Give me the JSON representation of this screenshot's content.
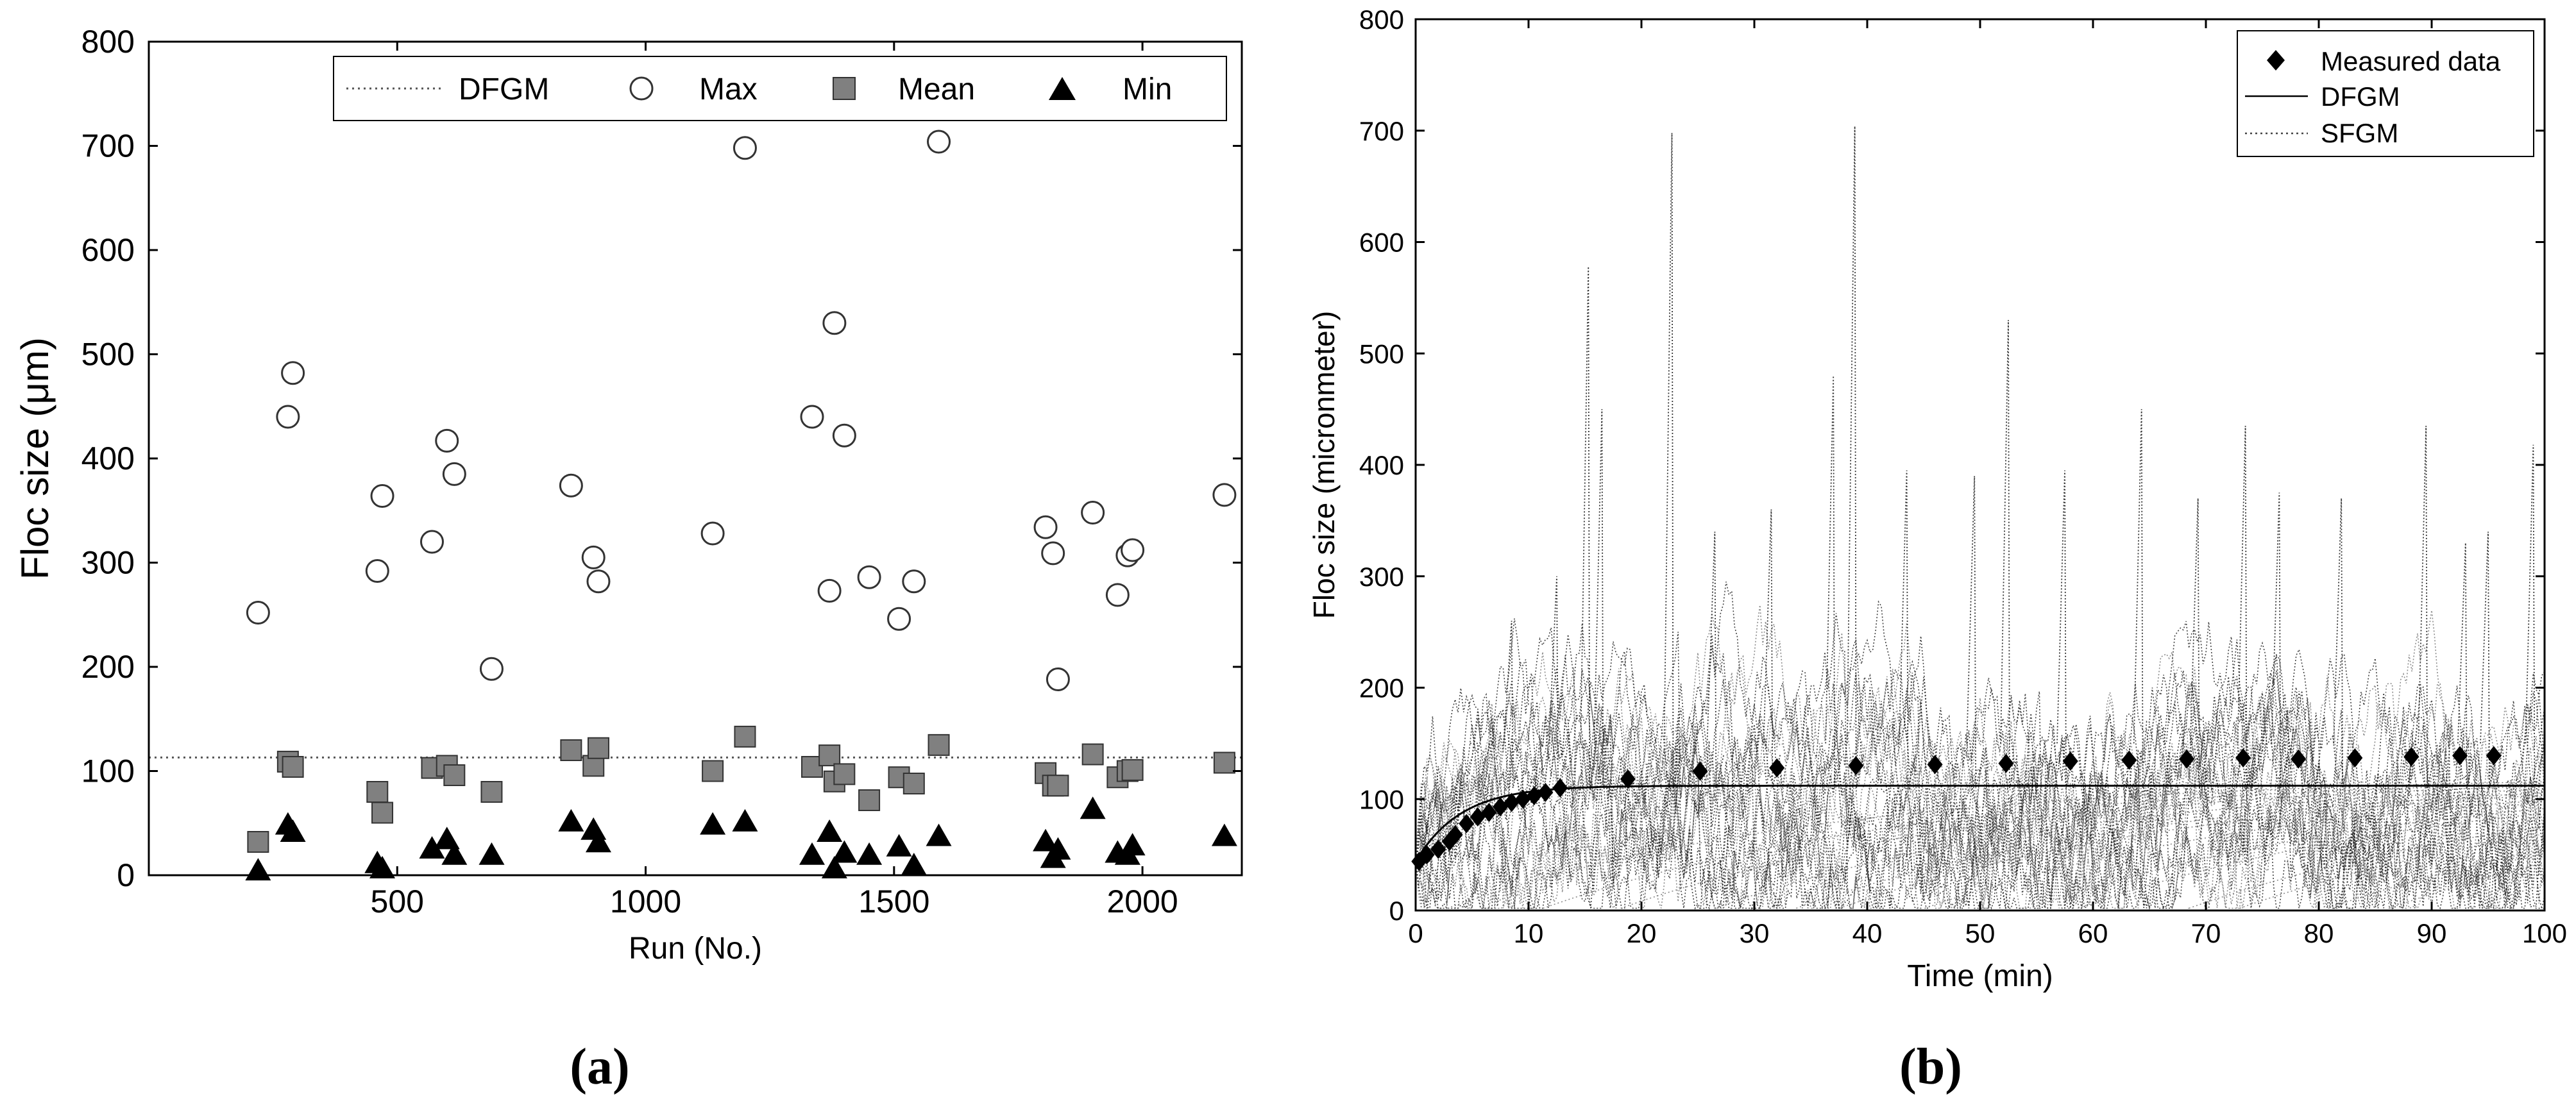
{
  "chart_data": [
    {
      "type": "scatter",
      "panel_label": "(a)",
      "panel_letter": "a",
      "title": "",
      "xlabel": "Run (No.)",
      "ylabel": "Floc size (μm)",
      "xlim": [
        0,
        2200
      ],
      "ylim": [
        0,
        800
      ],
      "xticks": [
        500,
        1000,
        1500,
        2000
      ],
      "xtick_labels": [
        "500",
        "1000",
        "1500",
        "2000"
      ],
      "yticks": [
        0,
        100,
        200,
        300,
        400,
        500,
        600,
        700,
        800
      ],
      "ytick_labels": [
        "0",
        "100",
        "200",
        "300",
        "400",
        "500",
        "600",
        "700",
        "800"
      ],
      "legend_position": "top-right",
      "legend": [
        "DFGM",
        "Max",
        "Mean",
        "Min"
      ],
      "dfgm_value": 113,
      "series": [
        {
          "name": "Max",
          "marker": "open-circle",
          "x": [
            220,
            280,
            290,
            460,
            470,
            570,
            600,
            615,
            690,
            850,
            895,
            905,
            1135,
            1200,
            1335,
            1370,
            1380,
            1400,
            1450,
            1510,
            1540,
            1590,
            1805,
            1820,
            1830,
            1900,
            1950,
            1970,
            1980,
            2165
          ],
          "y": [
            252,
            440,
            482,
            292,
            364,
            320,
            417,
            385,
            198,
            374,
            305,
            282,
            328,
            698,
            440,
            273,
            530,
            422,
            286,
            246,
            282,
            704,
            334,
            309,
            188,
            348,
            269,
            307,
            312,
            365
          ]
        },
        {
          "name": "Mean",
          "marker": "filled-square",
          "x": [
            220,
            280,
            290,
            460,
            470,
            570,
            600,
            615,
            690,
            850,
            895,
            905,
            1135,
            1200,
            1335,
            1370,
            1380,
            1400,
            1450,
            1510,
            1540,
            1590,
            1805,
            1820,
            1830,
            1900,
            1950,
            1970,
            1980,
            2165
          ],
          "y": [
            32,
            109,
            104,
            80,
            60,
            103,
            105,
            96,
            80,
            120,
            105,
            122,
            100,
            133,
            104,
            115,
            90,
            97,
            72,
            94,
            88,
            125,
            98,
            86,
            86,
            116,
            94,
            100,
            101,
            108
          ]
        },
        {
          "name": "Min",
          "marker": "filled-triangle",
          "x": [
            220,
            280,
            290,
            460,
            470,
            570,
            600,
            615,
            690,
            850,
            895,
            905,
            1135,
            1200,
            1335,
            1370,
            1380,
            1400,
            1450,
            1510,
            1540,
            1590,
            1805,
            1820,
            1830,
            1900,
            1950,
            1970,
            1980,
            2165
          ],
          "y": [
            3,
            47,
            40,
            10,
            5,
            24,
            33,
            18,
            18,
            50,
            42,
            30,
            47,
            50,
            18,
            40,
            5,
            20,
            18,
            26,
            8,
            36,
            31,
            15,
            23,
            62,
            20,
            18,
            27,
            36
          ]
        }
      ]
    },
    {
      "type": "line",
      "panel_label": "(b)",
      "panel_letter": "b",
      "title": "",
      "xlabel": "Time (min)",
      "ylabel": "Floc size (micronmeter)",
      "xlim": [
        0,
        100
      ],
      "ylim": [
        0,
        800
      ],
      "xticks": [
        0,
        10,
        20,
        30,
        40,
        50,
        60,
        70,
        80,
        90,
        100
      ],
      "xtick_labels": [
        "0",
        "10",
        "20",
        "30",
        "40",
        "50",
        "60",
        "70",
        "80",
        "90",
        "100"
      ],
      "yticks": [
        0,
        100,
        200,
        300,
        400,
        500,
        600,
        700,
        800
      ],
      "ytick_labels": [
        "0",
        "100",
        "200",
        "300",
        "400",
        "500",
        "600",
        "700",
        "800"
      ],
      "legend_position": "top-right",
      "legend": [
        "Measured data",
        "DFGM",
        "SFGM"
      ],
      "measured": {
        "x": [
          0.3,
          1,
          2,
          3,
          3.5,
          4.5,
          5.5,
          6.5,
          7.5,
          8.5,
          9.5,
          10.5,
          11.5,
          12.8,
          18.8,
          25.2,
          32,
          39,
          46,
          52.3,
          58,
          63.2,
          68.3,
          73.3,
          78.2,
          83.2,
          88.2,
          92.5,
          95.5
        ],
        "y": [
          44,
          50,
          55,
          62,
          68,
          78,
          84,
          88,
          93,
          97,
          100,
          103,
          106,
          110,
          118,
          125,
          128,
          130,
          131,
          132,
          134,
          135,
          136,
          137,
          136,
          137,
          138,
          139,
          139
        ]
      },
      "dfgm_model": {
        "initial": 44,
        "plateau": 112,
        "rate_per_min": 0.25
      },
      "sfgm_peaks": {
        "x": [
          5.5,
          8.5,
          12.5,
          15.3,
          16.5,
          22.7,
          26.5,
          31.5,
          37,
          38.9,
          43.5,
          49.5,
          52.5,
          57.5,
          64.3,
          69.3,
          73.5,
          76.5,
          82,
          89.5,
          93,
          95,
          99
        ],
        "y": [
          150,
          260,
          300,
          578,
          450,
          698,
          340,
          360,
          480,
          704,
          395,
          390,
          530,
          395,
          450,
          370,
          435,
          375,
          370,
          435,
          330,
          340,
          418
        ]
      }
    }
  ]
}
